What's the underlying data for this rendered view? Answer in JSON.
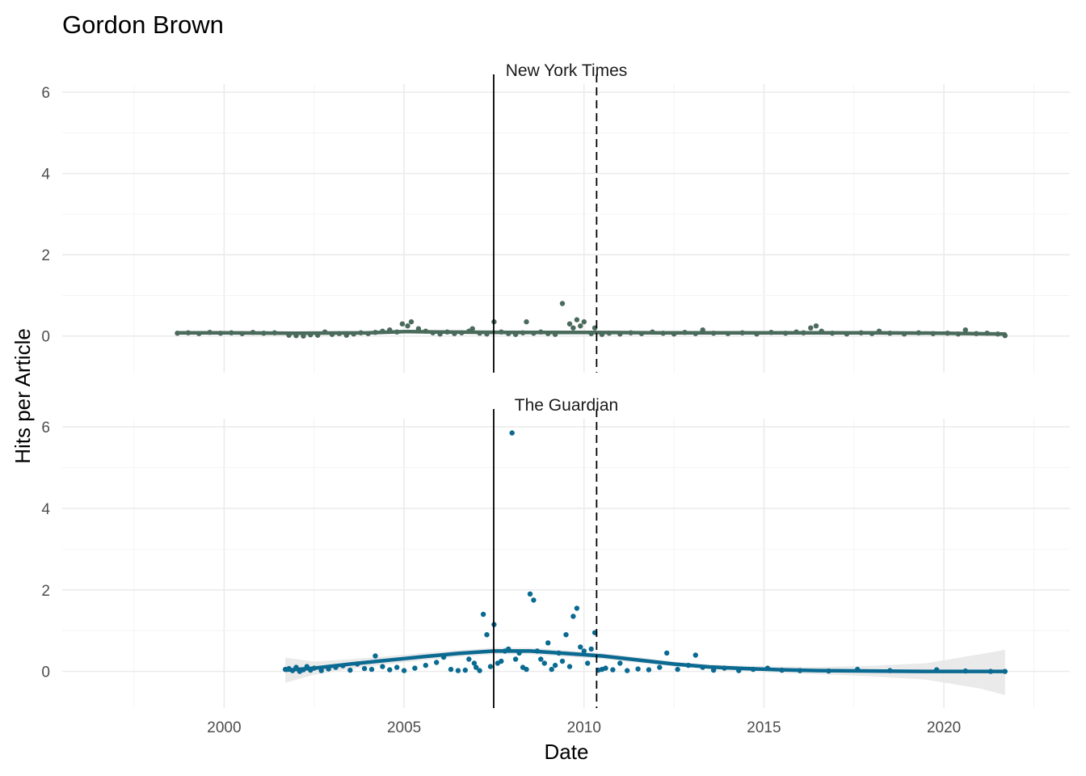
{
  "chart_data": {
    "type": "scatter",
    "title": "Gordon Brown",
    "xlabel": "Date",
    "ylabel": "Hits per Article",
    "xlim": [
      1995.5,
      2023.5
    ],
    "ylim": [
      -0.9,
      6.2
    ],
    "x_ticks": [
      2000,
      2005,
      2010,
      2015,
      2020
    ],
    "y_ticks": [
      0,
      2,
      4,
      6
    ],
    "grid": true,
    "reference_lines": [
      {
        "x": 2007.49,
        "style": "solid",
        "color": "#000000"
      },
      {
        "x": 2010.35,
        "style": "dashed",
        "color": "#000000"
      }
    ],
    "panels": [
      {
        "name": "New York Times",
        "color": "#4a6b5c",
        "points": [
          [
            1998.7,
            0.07
          ],
          [
            1999.0,
            0.08
          ],
          [
            1999.3,
            0.06
          ],
          [
            1999.6,
            0.09
          ],
          [
            1999.9,
            0.07
          ],
          [
            2000.2,
            0.08
          ],
          [
            2000.5,
            0.06
          ],
          [
            2000.8,
            0.09
          ],
          [
            2001.1,
            0.07
          ],
          [
            2001.4,
            0.08
          ],
          [
            2001.8,
            0.02
          ],
          [
            2002.0,
            0.01
          ],
          [
            2002.2,
            0.0
          ],
          [
            2002.4,
            0.03
          ],
          [
            2002.6,
            0.02
          ],
          [
            2002.8,
            0.1
          ],
          [
            2003.0,
            0.04
          ],
          [
            2003.2,
            0.06
          ],
          [
            2003.4,
            0.02
          ],
          [
            2003.6,
            0.05
          ],
          [
            2003.8,
            0.08
          ],
          [
            2004.0,
            0.06
          ],
          [
            2004.2,
            0.09
          ],
          [
            2004.4,
            0.12
          ],
          [
            2004.6,
            0.15
          ],
          [
            2004.8,
            0.1
          ],
          [
            2004.95,
            0.3
          ],
          [
            2005.1,
            0.25
          ],
          [
            2005.2,
            0.35
          ],
          [
            2005.4,
            0.18
          ],
          [
            2005.6,
            0.12
          ],
          [
            2005.8,
            0.08
          ],
          [
            2006.0,
            0.05
          ],
          [
            2006.2,
            0.1
          ],
          [
            2006.4,
            0.06
          ],
          [
            2006.6,
            0.08
          ],
          [
            2006.8,
            0.12
          ],
          [
            2006.9,
            0.18
          ],
          [
            2007.1,
            0.07
          ],
          [
            2007.3,
            0.05
          ],
          [
            2007.5,
            0.35
          ],
          [
            2007.7,
            0.1
          ],
          [
            2007.9,
            0.06
          ],
          [
            2008.1,
            0.04
          ],
          [
            2008.3,
            0.08
          ],
          [
            2008.4,
            0.35
          ],
          [
            2008.6,
            0.07
          ],
          [
            2008.8,
            0.1
          ],
          [
            2009.0,
            0.06
          ],
          [
            2009.2,
            0.04
          ],
          [
            2009.4,
            0.8
          ],
          [
            2009.6,
            0.3
          ],
          [
            2009.7,
            0.2
          ],
          [
            2009.8,
            0.4
          ],
          [
            2009.9,
            0.25
          ],
          [
            2010.0,
            0.35
          ],
          [
            2010.2,
            0.06
          ],
          [
            2010.3,
            0.2
          ],
          [
            2010.5,
            0.04
          ],
          [
            2010.7,
            0.07
          ],
          [
            2011.0,
            0.05
          ],
          [
            2011.3,
            0.08
          ],
          [
            2011.6,
            0.06
          ],
          [
            2011.9,
            0.1
          ],
          [
            2012.2,
            0.07
          ],
          [
            2012.5,
            0.05
          ],
          [
            2012.8,
            0.09
          ],
          [
            2013.1,
            0.06
          ],
          [
            2013.3,
            0.15
          ],
          [
            2013.6,
            0.07
          ],
          [
            2014.0,
            0.06
          ],
          [
            2014.4,
            0.08
          ],
          [
            2014.8,
            0.05
          ],
          [
            2015.2,
            0.09
          ],
          [
            2015.6,
            0.07
          ],
          [
            2015.9,
            0.1
          ],
          [
            2016.1,
            0.08
          ],
          [
            2016.3,
            0.2
          ],
          [
            2016.45,
            0.25
          ],
          [
            2016.6,
            0.12
          ],
          [
            2016.9,
            0.07
          ],
          [
            2017.3,
            0.05
          ],
          [
            2017.7,
            0.08
          ],
          [
            2018.0,
            0.06
          ],
          [
            2018.2,
            0.12
          ],
          [
            2018.5,
            0.07
          ],
          [
            2018.9,
            0.05
          ],
          [
            2019.3,
            0.08
          ],
          [
            2019.7,
            0.06
          ],
          [
            2020.1,
            0.07
          ],
          [
            2020.4,
            0.05
          ],
          [
            2020.6,
            0.15
          ],
          [
            2020.9,
            0.06
          ],
          [
            2021.2,
            0.07
          ],
          [
            2021.5,
            0.05
          ],
          [
            2021.7,
            0.01
          ]
        ],
        "trend": {
          "x": [
            1998.7,
            2000,
            2002,
            2004,
            2005,
            2006,
            2008,
            2010,
            2012,
            2014,
            2016,
            2018,
            2020,
            2021.7
          ],
          "y": [
            0.08,
            0.08,
            0.07,
            0.08,
            0.11,
            0.1,
            0.09,
            0.09,
            0.08,
            0.08,
            0.08,
            0.08,
            0.07,
            0.05
          ]
        }
      },
      {
        "name": "The Guardian",
        "color": "#0a6a91",
        "points": [
          [
            2001.7,
            0.05
          ],
          [
            2001.8,
            0.07
          ],
          [
            2001.9,
            0.02
          ],
          [
            2002.0,
            0.1
          ],
          [
            2002.1,
            0.0
          ],
          [
            2002.2,
            0.04
          ],
          [
            2002.3,
            0.12
          ],
          [
            2002.4,
            0.03
          ],
          [
            2002.5,
            0.08
          ],
          [
            2002.7,
            0.02
          ],
          [
            2002.9,
            0.06
          ],
          [
            2003.1,
            0.1
          ],
          [
            2003.3,
            0.14
          ],
          [
            2003.5,
            0.03
          ],
          [
            2003.7,
            0.18
          ],
          [
            2003.9,
            0.07
          ],
          [
            2004.1,
            0.05
          ],
          [
            2004.2,
            0.38
          ],
          [
            2004.4,
            0.12
          ],
          [
            2004.6,
            0.04
          ],
          [
            2004.8,
            0.1
          ],
          [
            2005.0,
            0.02
          ],
          [
            2005.3,
            0.08
          ],
          [
            2005.6,
            0.15
          ],
          [
            2005.9,
            0.22
          ],
          [
            2006.1,
            0.35
          ],
          [
            2006.3,
            0.05
          ],
          [
            2006.5,
            0.02
          ],
          [
            2006.7,
            0.03
          ],
          [
            2006.8,
            0.3
          ],
          [
            2006.95,
            0.2
          ],
          [
            2007.0,
            0.1
          ],
          [
            2007.1,
            0.02
          ],
          [
            2007.2,
            1.4
          ],
          [
            2007.3,
            0.9
          ],
          [
            2007.4,
            0.12
          ],
          [
            2007.5,
            1.15
          ],
          [
            2007.6,
            0.2
          ],
          [
            2007.7,
            0.25
          ],
          [
            2007.8,
            0.5
          ],
          [
            2007.9,
            0.55
          ],
          [
            2008.0,
            5.85
          ],
          [
            2008.1,
            0.3
          ],
          [
            2008.2,
            0.45
          ],
          [
            2008.3,
            0.1
          ],
          [
            2008.4,
            0.05
          ],
          [
            2008.5,
            1.9
          ],
          [
            2008.6,
            1.75
          ],
          [
            2008.7,
            0.5
          ],
          [
            2008.8,
            0.3
          ],
          [
            2008.9,
            0.2
          ],
          [
            2009.0,
            0.7
          ],
          [
            2009.1,
            0.05
          ],
          [
            2009.2,
            0.15
          ],
          [
            2009.3,
            0.45
          ],
          [
            2009.4,
            0.25
          ],
          [
            2009.5,
            0.9
          ],
          [
            2009.6,
            0.12
          ],
          [
            2009.7,
            1.35
          ],
          [
            2009.8,
            1.55
          ],
          [
            2009.9,
            0.6
          ],
          [
            2010.0,
            0.5
          ],
          [
            2010.1,
            0.2
          ],
          [
            2010.2,
            0.55
          ],
          [
            2010.3,
            0.95
          ],
          [
            2010.4,
            0.03
          ],
          [
            2010.5,
            0.05
          ],
          [
            2010.6,
            0.08
          ],
          [
            2010.8,
            0.04
          ],
          [
            2011.0,
            0.2
          ],
          [
            2011.2,
            0.02
          ],
          [
            2011.5,
            0.06
          ],
          [
            2011.8,
            0.04
          ],
          [
            2012.1,
            0.1
          ],
          [
            2012.3,
            0.45
          ],
          [
            2012.6,
            0.05
          ],
          [
            2012.9,
            0.15
          ],
          [
            2013.1,
            0.4
          ],
          [
            2013.3,
            0.1
          ],
          [
            2013.6,
            0.03
          ],
          [
            2013.9,
            0.08
          ],
          [
            2014.3,
            0.02
          ],
          [
            2014.7,
            0.05
          ],
          [
            2015.1,
            0.08
          ],
          [
            2015.5,
            0.03
          ],
          [
            2016.0,
            0.02
          ],
          [
            2016.8,
            0.01
          ],
          [
            2017.6,
            0.05
          ],
          [
            2018.5,
            0.02
          ],
          [
            2019.8,
            0.04
          ],
          [
            2020.6,
            0.01
          ],
          [
            2021.3,
            0.0
          ],
          [
            2021.7,
            0.0
          ]
        ],
        "trend": {
          "x": [
            2001.7,
            2002.5,
            2003.5,
            2004.5,
            2005.5,
            2006.5,
            2007.5,
            2008.5,
            2009.5,
            2010.5,
            2011.5,
            2012.5,
            2013.5,
            2014.5,
            2015.5,
            2016.5,
            2018,
            2019.5,
            2021,
            2021.7
          ],
          "y": [
            0.03,
            0.08,
            0.18,
            0.27,
            0.36,
            0.44,
            0.5,
            0.5,
            0.44,
            0.38,
            0.28,
            0.18,
            0.11,
            0.07,
            0.04,
            0.02,
            0.01,
            0.0,
            0.0,
            0.0
          ],
          "ci_low": [
            -0.28,
            -0.08,
            0.06,
            0.17,
            0.27,
            0.36,
            0.42,
            0.42,
            0.36,
            0.31,
            0.21,
            0.12,
            0.05,
            0.0,
            -0.04,
            -0.07,
            -0.12,
            -0.2,
            -0.42,
            -0.58
          ],
          "ci_high": [
            0.34,
            0.24,
            0.3,
            0.37,
            0.45,
            0.52,
            0.58,
            0.58,
            0.52,
            0.45,
            0.35,
            0.24,
            0.17,
            0.14,
            0.12,
            0.11,
            0.14,
            0.2,
            0.42,
            0.53
          ]
        }
      }
    ]
  }
}
